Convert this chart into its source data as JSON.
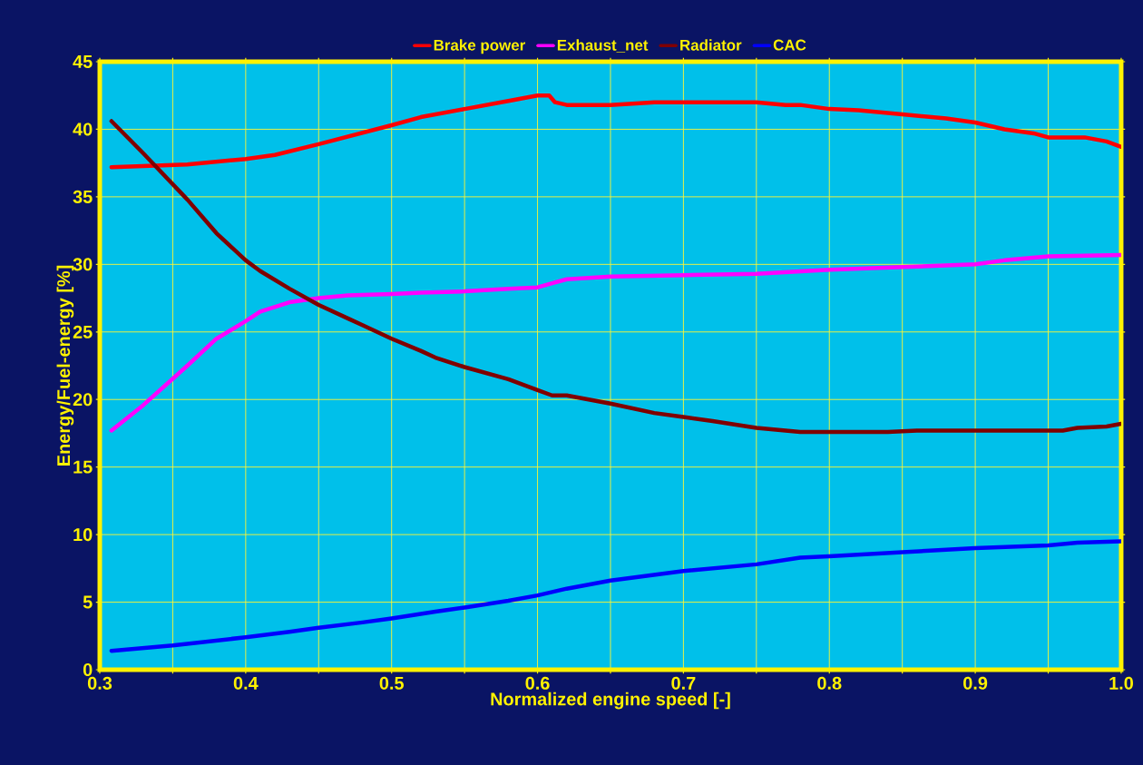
{
  "chart_data": {
    "type": "line",
    "xlabel": "Normalized engine speed [-]",
    "ylabel": "Energy/Fuel-energy [%]",
    "xlim": [
      0.3,
      1.0
    ],
    "ylim": [
      0,
      45
    ],
    "xticks": [
      0.3,
      {
        "value": 0.35,
        "label": null
      },
      0.4,
      {
        "value": 0.45,
        "label": null
      },
      0.5,
      {
        "value": 0.55,
        "label": null
      },
      0.6,
      {
        "value": 0.65,
        "label": null
      },
      0.7,
      {
        "value": 0.75,
        "label": null
      },
      0.8,
      {
        "value": 0.85,
        "label": null
      },
      0.9,
      {
        "value": 0.95,
        "label": null
      },
      {
        "value": 1.0,
        "label": "1.0"
      }
    ],
    "yticks": [
      0,
      5,
      10,
      15,
      20,
      25,
      30,
      35,
      40,
      45
    ],
    "grid": true,
    "legend": "top",
    "marker": "none",
    "line_style": "solid",
    "series": [
      {
        "name": "Brake power",
        "color": "#ff0000",
        "x": [
          0.308,
          0.36,
          0.4,
          0.42,
          0.45,
          0.5,
          0.52,
          0.55,
          0.58,
          0.6,
          0.608,
          0.612,
          0.62,
          0.65,
          0.68,
          0.7,
          0.75,
          0.77,
          0.78,
          0.8,
          0.82,
          0.85,
          0.88,
          0.9,
          0.92,
          0.94,
          0.95,
          0.96,
          0.975,
          0.99,
          1.0
        ],
        "values": [
          37.2,
          37.4,
          37.8,
          38.1,
          38.9,
          40.3,
          40.9,
          41.5,
          42.1,
          42.5,
          42.5,
          42.0,
          41.8,
          41.8,
          42.0,
          42.0,
          42.0,
          41.8,
          41.8,
          41.5,
          41.4,
          41.1,
          40.8,
          40.5,
          40.0,
          39.7,
          39.4,
          39.4,
          39.4,
          39.1,
          38.7
        ]
      },
      {
        "name": "Exhaust_net",
        "color": "#ff00ff",
        "x": [
          0.308,
          0.33,
          0.36,
          0.38,
          0.4,
          0.41,
          0.43,
          0.45,
          0.47,
          0.5,
          0.52,
          0.55,
          0.58,
          0.6,
          0.61,
          0.62,
          0.65,
          0.7,
          0.75,
          0.8,
          0.85,
          0.9,
          0.92,
          0.95,
          1.0
        ],
        "values": [
          17.7,
          19.6,
          22.5,
          24.5,
          25.8,
          26.5,
          27.2,
          27.5,
          27.7,
          27.8,
          27.9,
          28.0,
          28.2,
          28.3,
          28.6,
          28.9,
          29.1,
          29.2,
          29.3,
          29.6,
          29.8,
          30.0,
          30.3,
          30.6,
          30.7
        ]
      },
      {
        "name": "Radiator",
        "color": "#800000",
        "x": [
          0.308,
          0.33,
          0.36,
          0.38,
          0.4,
          0.41,
          0.43,
          0.45,
          0.47,
          0.48,
          0.5,
          0.52,
          0.53,
          0.55,
          0.58,
          0.6,
          0.61,
          0.62,
          0.65,
          0.68,
          0.7,
          0.72,
          0.75,
          0.78,
          0.8,
          0.84,
          0.86,
          0.9,
          0.96,
          0.97,
          0.99,
          1.0
        ],
        "values": [
          40.6,
          38.2,
          34.8,
          32.3,
          30.3,
          29.5,
          28.2,
          27.0,
          26.0,
          25.5,
          24.5,
          23.6,
          23.1,
          22.4,
          21.5,
          20.7,
          20.3,
          20.3,
          19.7,
          19.0,
          18.7,
          18.4,
          17.9,
          17.6,
          17.6,
          17.6,
          17.7,
          17.7,
          17.7,
          17.9,
          18.0,
          18.2
        ]
      },
      {
        "name": "CAC",
        "color": "#0000ff",
        "x": [
          0.308,
          0.35,
          0.4,
          0.43,
          0.45,
          0.48,
          0.5,
          0.53,
          0.55,
          0.58,
          0.6,
          0.62,
          0.65,
          0.7,
          0.75,
          0.78,
          0.8,
          0.85,
          0.9,
          0.95,
          0.97,
          1.0
        ],
        "values": [
          1.4,
          1.8,
          2.4,
          2.8,
          3.1,
          3.5,
          3.8,
          4.3,
          4.6,
          5.1,
          5.5,
          6.0,
          6.6,
          7.3,
          7.8,
          8.3,
          8.4,
          8.7,
          9.0,
          9.2,
          9.4,
          9.5
        ]
      }
    ]
  }
}
